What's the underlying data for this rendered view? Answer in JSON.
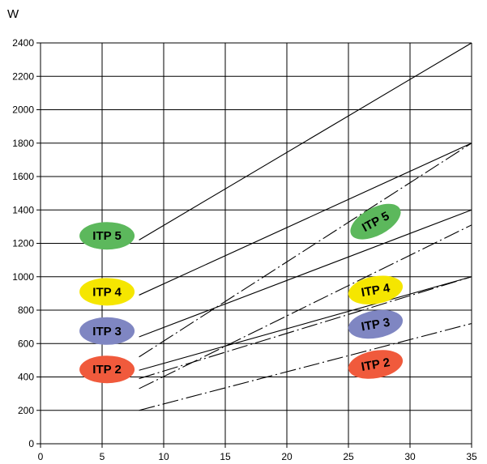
{
  "chart_data": {
    "type": "line",
    "ylabel": "W",
    "xlabel": "",
    "xlim": [
      0,
      35
    ],
    "ylim": [
      0,
      2400
    ],
    "xticks": [
      0,
      5,
      10,
      15,
      20,
      25,
      30,
      35
    ],
    "yticks": [
      0,
      200,
      400,
      600,
      800,
      1000,
      1200,
      1400,
      1600,
      1800,
      2000,
      2200,
      2400
    ],
    "grid": true,
    "series": [
      {
        "name": "ITP 5",
        "style": "solid",
        "x": [
          8,
          35
        ],
        "y": [
          1220,
          2400
        ]
      },
      {
        "name": "ITP 5",
        "style": "dash-dot",
        "x": [
          8,
          35
        ],
        "y": [
          520,
          1800
        ]
      },
      {
        "name": "ITP 4",
        "style": "solid",
        "x": [
          8,
          35
        ],
        "y": [
          890,
          1800
        ]
      },
      {
        "name": "ITP 4",
        "style": "dash-dot",
        "x": [
          8,
          35
        ],
        "y": [
          330,
          1310
        ]
      },
      {
        "name": "ITP 3",
        "style": "solid",
        "x": [
          8,
          35
        ],
        "y": [
          640,
          1400
        ]
      },
      {
        "name": "ITP 3",
        "style": "dash-dot",
        "x": [
          8,
          35
        ],
        "y": [
          390,
          1000
        ]
      },
      {
        "name": "ITP 2",
        "style": "solid",
        "x": [
          8,
          35
        ],
        "y": [
          440,
          1000
        ]
      },
      {
        "name": "ITP 2",
        "style": "dash-dot",
        "x": [
          8,
          35
        ],
        "y": [
          200,
          720
        ]
      }
    ],
    "labels": [
      {
        "text": "ITP 5",
        "color": "#5cb85c",
        "x": 5.4,
        "y": 1245,
        "angle": 0
      },
      {
        "text": "ITP 4",
        "color": "#f5e600",
        "x": 5.4,
        "y": 910,
        "angle": 0
      },
      {
        "text": "ITP 3",
        "color": "#7f86c2",
        "x": 5.4,
        "y": 675,
        "angle": 0
      },
      {
        "text": "ITP 2",
        "color": "#f05a3c",
        "x": 5.4,
        "y": 445,
        "angle": 0
      },
      {
        "text": "ITP 5",
        "color": "#5cb85c",
        "x": 27.2,
        "y": 1330,
        "angle": -28
      },
      {
        "text": "ITP 4",
        "color": "#f5e600",
        "x": 27.2,
        "y": 920,
        "angle": -10
      },
      {
        "text": "ITP 3",
        "color": "#7f86c2",
        "x": 27.2,
        "y": 715,
        "angle": -10
      },
      {
        "text": "ITP 2",
        "color": "#f05a3c",
        "x": 27.2,
        "y": 475,
        "angle": -10
      }
    ]
  }
}
